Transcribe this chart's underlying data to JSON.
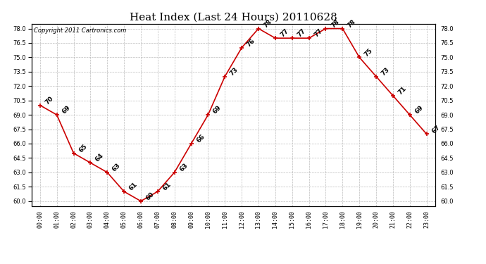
{
  "title": "Heat Index (Last 24 Hours) 20110628",
  "copyright": "Copyright 2011 Cartronics.com",
  "hours": [
    0,
    1,
    2,
    3,
    4,
    5,
    6,
    7,
    8,
    9,
    10,
    11,
    12,
    13,
    14,
    15,
    16,
    17,
    18,
    19,
    20,
    21,
    22,
    23
  ],
  "values": [
    70,
    69,
    65,
    64,
    63,
    61,
    60,
    61,
    63,
    66,
    69,
    73,
    76,
    78,
    77,
    77,
    77,
    78,
    78,
    75,
    73,
    71,
    69,
    67
  ],
  "ylim": [
    59.5,
    78.5
  ],
  "yticks": [
    60.0,
    61.5,
    63.0,
    64.5,
    66.0,
    67.5,
    69.0,
    70.5,
    72.0,
    73.5,
    75.0,
    76.5,
    78.0
  ],
  "line_color": "#cc0000",
  "marker_color": "#cc0000",
  "bg_color": "#ffffff",
  "grid_color": "#bbbbbb",
  "title_fontsize": 11,
  "label_fontsize": 6,
  "annotation_fontsize": 6.5,
  "copyright_fontsize": 6
}
